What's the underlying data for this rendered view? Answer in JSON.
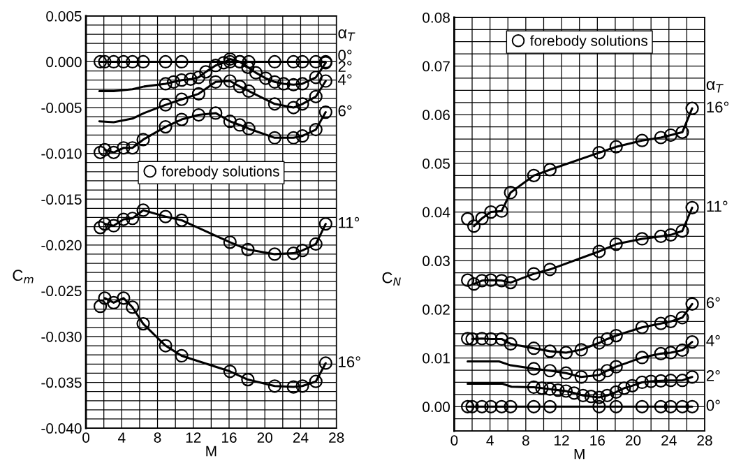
{
  "chart_data": [
    {
      "type": "line",
      "xlabel": "M",
      "ylabel": "C$_{m}$",
      "annotations": [
        "α$_{T}$"
      ],
      "xlim": [
        0,
        28
      ],
      "ylim": [
        -0.04,
        0.005
      ],
      "xticks": [
        0,
        {
          "value": 2,
          "label": null
        },
        4,
        {
          "value": 6,
          "label": null
        },
        8,
        {
          "value": 10,
          "label": null
        },
        12,
        {
          "value": 14,
          "label": null
        },
        16,
        {
          "value": 18,
          "label": null
        },
        20,
        {
          "value": 22,
          "label": null
        },
        24,
        {
          "value": 26,
          "label": null
        },
        28
      ],
      "yticks": [
        {
          "value": -0.04,
          "label": "-0.040"
        },
        {
          "value": -0.039,
          "label": null
        },
        {
          "value": -0.038,
          "label": null
        },
        {
          "value": -0.037,
          "label": null
        },
        {
          "value": -0.036,
          "label": null
        },
        {
          "value": -0.035,
          "label": "-0.035"
        },
        {
          "value": -0.034,
          "label": null
        },
        {
          "value": -0.033,
          "label": null
        },
        {
          "value": -0.032,
          "label": null
        },
        {
          "value": -0.031,
          "label": null
        },
        {
          "value": -0.03,
          "label": "-0.030"
        },
        {
          "value": -0.029,
          "label": null
        },
        {
          "value": -0.028,
          "label": null
        },
        {
          "value": -0.027,
          "label": null
        },
        {
          "value": -0.026,
          "label": null
        },
        {
          "value": -0.025,
          "label": "-0.025"
        },
        {
          "value": -0.024,
          "label": null
        },
        {
          "value": -0.023,
          "label": null
        },
        {
          "value": -0.022,
          "label": null
        },
        {
          "value": -0.021,
          "label": null
        },
        {
          "value": -0.02,
          "label": "-0.020"
        },
        {
          "value": -0.019,
          "label": null
        },
        {
          "value": -0.018,
          "label": null
        },
        {
          "value": -0.017,
          "label": null
        },
        {
          "value": -0.016,
          "label": null
        },
        {
          "value": -0.015,
          "label": "-0.015"
        },
        {
          "value": -0.014,
          "label": null
        },
        {
          "value": -0.013,
          "label": null
        },
        {
          "value": -0.012,
          "label": null
        },
        {
          "value": -0.011,
          "label": null
        },
        {
          "value": -0.01,
          "label": "-0.010"
        },
        {
          "value": -0.009,
          "label": null
        },
        {
          "value": -0.008,
          "label": null
        },
        {
          "value": -0.007,
          "label": null
        },
        {
          "value": -0.006,
          "label": null
        },
        {
          "value": -0.005,
          "label": "-0.005"
        },
        {
          "value": -0.004,
          "label": null
        },
        {
          "value": -0.003,
          "label": null
        },
        {
          "value": -0.002,
          "label": null
        },
        {
          "value": -0.001,
          "label": null
        },
        {
          "value": 0.0,
          "label": "0.000"
        },
        {
          "value": 0.001,
          "label": null
        },
        {
          "value": 0.002,
          "label": null
        },
        {
          "value": 0.003,
          "label": null
        },
        {
          "value": 0.004,
          "label": null
        },
        {
          "value": 0.005,
          "label": "0.005"
        }
      ],
      "grid": true,
      "legend": "center",
      "series": [
        {
          "name": "0°",
          "color": "#000000",
          "marker": "none",
          "x": [
            1.5,
            26.8
          ],
          "values": [
            0.0,
            0.0
          ]
        },
        {
          "name": "2°",
          "color": "#000000",
          "marker": "none",
          "x": [
            1.5,
            3.1,
            5.2,
            6.5,
            8.9,
            9.8,
            10.7,
            11.7,
            12.6,
            13.4,
            14.5,
            15.4,
            16.1,
            17.2,
            18.1,
            19.0,
            20.1,
            21.1,
            22.1,
            23.2,
            24.2,
            25.7,
            26.8
          ],
          "values": [
            -0.0032,
            -0.0032,
            -0.003,
            -0.0027,
            -0.0024,
            -0.0022,
            -0.002,
            -0.0019,
            -0.0017,
            -0.0011,
            -0.0004,
            -0.0001,
            0.0003,
            0.0,
            -0.0006,
            -0.0012,
            -0.0018,
            -0.0022,
            -0.0024,
            -0.0025,
            -0.0024,
            -0.0017,
            -0.0001
          ]
        },
        {
          "name": "4°",
          "color": "#000000",
          "marker": "none",
          "x": [
            1.5,
            3.1,
            5.2,
            6.5,
            8.9,
            10.7,
            12.6,
            14.5,
            16.1,
            17.2,
            18.2,
            21.1,
            23.2,
            24.2,
            25.7,
            26.8
          ],
          "values": [
            -0.0065,
            -0.0066,
            -0.0062,
            -0.0056,
            -0.0047,
            -0.0041,
            -0.0035,
            -0.0022,
            -0.0021,
            -0.0027,
            -0.0032,
            -0.0046,
            -0.005,
            -0.0046,
            -0.0038,
            -0.0021
          ]
        },
        {
          "name": "6°",
          "color": "#000000",
          "marker": "none",
          "x": [
            2.1,
            3.1,
            4.2,
            5.2,
            6.4,
            8.9,
            10.7,
            12.6,
            14.5,
            16.1,
            17.2,
            18.2,
            21.1,
            23.2,
            24.2,
            25.7,
            26.8
          ],
          "values": [
            -0.0096,
            -0.0099,
            -0.0094,
            -0.0094,
            -0.0085,
            -0.0071,
            -0.0063,
            -0.0058,
            -0.0056,
            -0.0065,
            -0.0069,
            -0.0073,
            -0.0083,
            -0.0083,
            -0.0081,
            -0.0074,
            -0.0055
          ]
        },
        {
          "name": "11°",
          "color": "#000000",
          "marker": "none",
          "x": [
            2.1,
            3.1,
            4.2,
            5.2,
            6.4,
            8.9,
            10.7,
            16.1,
            18.1,
            21.1,
            23.2,
            24.2,
            25.7,
            26.8
          ],
          "values": [
            -0.0177,
            -0.0179,
            -0.0172,
            -0.0171,
            -0.0162,
            -0.0169,
            -0.0173,
            -0.0197,
            -0.0205,
            -0.021,
            -0.0209,
            -0.0206,
            -0.0199,
            -0.0177
          ]
        },
        {
          "name": "16°",
          "color": "#000000",
          "marker": "none",
          "x": [
            2.1,
            3.1,
            4.2,
            5.2,
            6.4,
            8.9,
            10.7,
            16.1,
            18.1,
            21.1,
            23.2,
            24.2,
            25.7,
            26.8
          ],
          "values": [
            -0.0258,
            -0.0263,
            -0.0258,
            -0.0268,
            -0.0286,
            -0.031,
            -0.0321,
            -0.0338,
            -0.0347,
            -0.0354,
            -0.0355,
            -0.0354,
            -0.0349,
            -0.0329
          ]
        },
        {
          "type": "scatter",
          "name": "forebody solutions",
          "color": "#000000",
          "marker": "circle",
          "x": [
            1.6,
            2.1,
            3.1,
            4.2,
            5.2,
            6.4,
            8.9,
            10.7,
            16.1,
            17.2,
            18.2,
            21.1,
            23.2,
            24.2,
            25.7,
            26.8,
            8.9,
            9.8,
            10.7,
            11.7,
            12.6,
            13.4,
            14.5,
            15.4,
            16.1,
            17.2,
            18.1,
            19.0,
            20.1,
            21.1,
            22.1,
            23.2,
            24.2,
            25.7,
            26.8,
            8.9,
            10.7,
            12.6,
            14.5,
            16.1,
            17.2,
            18.2,
            21.1,
            23.2,
            24.2,
            25.7,
            26.8,
            1.6,
            2.1,
            3.1,
            4.2,
            5.2,
            6.4,
            8.9,
            10.7,
            12.6,
            14.5,
            16.1,
            17.2,
            18.2,
            21.1,
            23.2,
            24.2,
            25.7,
            26.8,
            1.6,
            2.1,
            3.1,
            4.2,
            5.2,
            6.4,
            8.9,
            10.7,
            16.1,
            18.1,
            21.1,
            23.2,
            24.2,
            25.7,
            26.8,
            1.6,
            2.1,
            3.1,
            4.2,
            5.2,
            6.4,
            8.9,
            10.7,
            16.1,
            18.1,
            21.1,
            23.2,
            24.2,
            25.7,
            26.8
          ],
          "values": [
            0.0,
            0.0,
            0.0,
            0.0,
            0.0,
            0.0,
            0.0,
            0.0,
            0.0,
            0.0,
            0.0,
            0.0,
            0.0,
            0.0,
            0.0,
            0.0,
            -0.0024,
            -0.0022,
            -0.002,
            -0.0019,
            -0.0017,
            -0.0011,
            -0.0004,
            -0.0001,
            0.0003,
            0.0,
            -0.0006,
            -0.0012,
            -0.0018,
            -0.0022,
            -0.0024,
            -0.0025,
            -0.0024,
            -0.0017,
            -0.0001,
            -0.0047,
            -0.0041,
            -0.0035,
            -0.0022,
            -0.0021,
            -0.0027,
            -0.0032,
            -0.0046,
            -0.005,
            -0.0046,
            -0.0038,
            -0.0021,
            -0.0099,
            -0.0096,
            -0.0099,
            -0.0094,
            -0.0094,
            -0.0085,
            -0.0071,
            -0.0063,
            -0.0058,
            -0.0056,
            -0.0065,
            -0.0069,
            -0.0073,
            -0.0083,
            -0.0083,
            -0.0081,
            -0.0074,
            -0.0055,
            -0.0181,
            -0.0177,
            -0.0179,
            -0.0172,
            -0.0171,
            -0.0162,
            -0.0169,
            -0.0173,
            -0.0197,
            -0.0205,
            -0.021,
            -0.0209,
            -0.0206,
            -0.0199,
            -0.0177,
            -0.0267,
            -0.0258,
            -0.0263,
            -0.0258,
            -0.0268,
            -0.0286,
            -0.031,
            -0.0321,
            -0.0338,
            -0.0347,
            -0.0354,
            -0.0355,
            -0.0354,
            -0.0349,
            -0.0329
          ]
        }
      ]
    },
    {
      "type": "line",
      "xlabel": "M",
      "ylabel": "C$_{N}$",
      "annotations": [
        "α$_{T}$"
      ],
      "xlim": [
        0,
        28
      ],
      "ylim": [
        -0.005,
        0.08
      ],
      "xticks": [
        0,
        {
          "value": 2,
          "label": null
        },
        4,
        {
          "value": 6,
          "label": null
        },
        8,
        {
          "value": 10,
          "label": null
        },
        12,
        {
          "value": 14,
          "label": null
        },
        16,
        {
          "value": 18,
          "label": null
        },
        20,
        {
          "value": 22,
          "label": null
        },
        24,
        {
          "value": 26,
          "label": null
        },
        28
      ],
      "yticks": [
        {
          "value": -0.005,
          "label": null
        },
        {
          "value": -0.0025,
          "label": null
        },
        {
          "value": 0.0,
          "label": "0.00"
        },
        {
          "value": 0.0025,
          "label": null
        },
        {
          "value": 0.005,
          "label": null
        },
        {
          "value": 0.0075,
          "label": null
        },
        {
          "value": 0.01,
          "label": "0.01"
        },
        {
          "value": 0.0125,
          "label": null
        },
        {
          "value": 0.015,
          "label": null
        },
        {
          "value": 0.0175,
          "label": null
        },
        {
          "value": 0.02,
          "label": "0.02"
        },
        {
          "value": 0.0225,
          "label": null
        },
        {
          "value": 0.025,
          "label": null
        },
        {
          "value": 0.0275,
          "label": null
        },
        {
          "value": 0.03,
          "label": "0.03"
        },
        {
          "value": 0.0325,
          "label": null
        },
        {
          "value": 0.035,
          "label": null
        },
        {
          "value": 0.0375,
          "label": null
        },
        {
          "value": 0.04,
          "label": "0.04"
        },
        {
          "value": 0.0425,
          "label": null
        },
        {
          "value": 0.045,
          "label": null
        },
        {
          "value": 0.0475,
          "label": null
        },
        {
          "value": 0.05,
          "label": "0.05"
        },
        {
          "value": 0.0525,
          "label": null
        },
        {
          "value": 0.055,
          "label": null
        },
        {
          "value": 0.0575,
          "label": null
        },
        {
          "value": 0.06,
          "label": "0.06"
        },
        {
          "value": 0.0625,
          "label": null
        },
        {
          "value": 0.065,
          "label": null
        },
        {
          "value": 0.0675,
          "label": null
        },
        {
          "value": 0.07,
          "label": "0.07"
        },
        {
          "value": 0.0725,
          "label": null
        },
        {
          "value": 0.075,
          "label": null
        },
        {
          "value": 0.0775,
          "label": null
        },
        {
          "value": 0.08,
          "label": "0.08"
        }
      ],
      "grid": true,
      "legend": "top",
      "series": [
        {
          "name": "16°",
          "color": "#000000",
          "marker": "none",
          "x": [
            2.2,
            3.1,
            4.1,
            5.3,
            6.3,
            8.9,
            10.7,
            16.2,
            18.1,
            21.0,
            23.1,
            24.2,
            25.5,
            26.6
          ],
          "values": [
            0.0371,
            0.0387,
            0.04,
            0.0402,
            0.044,
            0.0475,
            0.0487,
            0.0522,
            0.0534,
            0.0547,
            0.0553,
            0.0558,
            0.0564,
            0.0613
          ]
        },
        {
          "name": "11°",
          "color": "#000000",
          "marker": "none",
          "x": [
            2.2,
            3.1,
            4.1,
            5.3,
            6.3,
            8.9,
            10.7,
            16.2,
            18.1,
            21.0,
            23.1,
            24.2,
            25.5,
            26.6
          ],
          "values": [
            0.0252,
            0.0259,
            0.026,
            0.0259,
            0.0255,
            0.0273,
            0.0282,
            0.0319,
            0.0334,
            0.0345,
            0.035,
            0.0353,
            0.0361,
            0.0409
          ]
        },
        {
          "name": "6°",
          "color": "#000000",
          "marker": "none",
          "x": [
            2.0,
            3.1,
            4.1,
            5.3,
            6.3,
            8.9,
            10.7,
            12.5,
            14.2,
            16.2,
            17.1,
            18.1,
            21.0,
            23.1,
            24.2,
            25.5,
            26.6
          ],
          "values": [
            0.0139,
            0.014,
            0.0139,
            0.0139,
            0.0129,
            0.012,
            0.0114,
            0.0111,
            0.0117,
            0.0131,
            0.0139,
            0.0146,
            0.0163,
            0.0171,
            0.0175,
            0.0183,
            0.0211
          ]
        },
        {
          "name": "4°",
          "color": "#000000",
          "marker": "none",
          "x": [
            1.5,
            5.0,
            6.3,
            8.9,
            10.7,
            12.5,
            14.2,
            16.2,
            17.1,
            18.1,
            21.0,
            23.1,
            24.2,
            25.5,
            26.6
          ],
          "values": [
            0.0093,
            0.0093,
            0.0085,
            0.0078,
            0.0074,
            0.0069,
            0.0061,
            0.0065,
            0.0074,
            0.0082,
            0.0101,
            0.0109,
            0.0111,
            0.0116,
            0.0133
          ]
        },
        {
          "name": "2°",
          "color": "#000000",
          "marker": "none",
          "x": [
            1.5,
            5.4,
            6.4,
            8.5,
            8.9,
            9.8,
            10.7,
            11.6,
            12.5,
            13.4,
            14.4,
            15.3,
            16.2,
            17.1,
            18.1,
            19.0,
            19.9,
            21.0,
            22.0,
            23.1,
            24.2,
            25.5,
            26.6
          ],
          "values": [
            0.0047,
            0.0047,
            0.0041,
            0.004,
            0.004,
            0.0038,
            0.0036,
            0.0034,
            0.0032,
            0.0028,
            0.0023,
            0.0021,
            0.0019,
            0.0023,
            0.003,
            0.0038,
            0.0043,
            0.005,
            0.0052,
            0.0053,
            0.0054,
            0.0054,
            0.0061
          ]
        },
        {
          "name": "0°",
          "color": "#000000",
          "marker": "none",
          "x": [
            1.5,
            26.6
          ],
          "values": [
            0.0,
            0.0
          ]
        },
        {
          "type": "scatter",
          "name": "forebody solutions",
          "color": "#000000",
          "marker": "circle",
          "x": [
            1.5,
            2.2,
            3.1,
            4.1,
            5.3,
            6.3,
            8.9,
            10.7,
            16.2,
            18.1,
            21.0,
            23.1,
            24.2,
            25.5,
            26.6,
            1.5,
            2.2,
            3.1,
            4.1,
            5.3,
            6.3,
            8.9,
            10.7,
            16.2,
            18.1,
            21.0,
            23.1,
            24.2,
            25.5,
            26.6,
            1.5,
            2.0,
            3.1,
            4.1,
            5.3,
            6.3,
            8.9,
            10.7,
            12.5,
            14.2,
            16.2,
            17.1,
            18.1,
            21.0,
            23.1,
            24.2,
            25.5,
            26.6,
            8.9,
            10.7,
            12.5,
            14.2,
            16.2,
            17.1,
            18.1,
            21.0,
            23.1,
            24.2,
            25.5,
            26.6,
            8.9,
            9.8,
            10.7,
            11.6,
            12.5,
            13.4,
            14.4,
            15.3,
            16.2,
            17.1,
            18.1,
            19.0,
            19.9,
            21.0,
            22.0,
            23.1,
            24.2,
            25.5,
            26.6,
            1.5,
            2.0,
            3.1,
            4.1,
            5.3,
            6.3,
            8.9,
            10.7,
            16.2,
            18.1,
            21.0,
            23.1,
            24.2,
            25.5,
            26.6
          ],
          "values": [
            0.0386,
            0.0371,
            0.0387,
            0.04,
            0.0402,
            0.044,
            0.0475,
            0.0487,
            0.0522,
            0.0534,
            0.0547,
            0.0553,
            0.0558,
            0.0564,
            0.0613,
            0.026,
            0.0252,
            0.0259,
            0.026,
            0.0259,
            0.0255,
            0.0273,
            0.0282,
            0.0319,
            0.0334,
            0.0345,
            0.035,
            0.0353,
            0.0361,
            0.0409,
            0.014,
            0.0139,
            0.014,
            0.0139,
            0.0139,
            0.0129,
            0.012,
            0.0114,
            0.0111,
            0.0117,
            0.0131,
            0.0139,
            0.0146,
            0.0163,
            0.0171,
            0.0175,
            0.0183,
            0.0211,
            0.0078,
            0.0074,
            0.0069,
            0.0061,
            0.0065,
            0.0074,
            0.0082,
            0.0101,
            0.0109,
            0.0111,
            0.0116,
            0.0133,
            0.004,
            0.0038,
            0.0036,
            0.0034,
            0.0032,
            0.0028,
            0.0023,
            0.0021,
            0.0019,
            0.0023,
            0.003,
            0.0038,
            0.0043,
            0.005,
            0.0052,
            0.0053,
            0.0054,
            0.0054,
            0.0061,
            0.0,
            0.0,
            0.0,
            0.0,
            0.0,
            0.0,
            0.0,
            0.0,
            0.0,
            0.0,
            0.0,
            0.0,
            0.0,
            0.0,
            0.0
          ]
        }
      ]
    }
  ]
}
